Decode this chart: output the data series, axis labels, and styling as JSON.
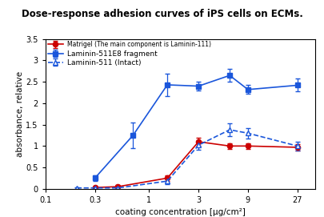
{
  "title": "Dose-response adhesion curves of iPS cells on ECMs.",
  "title_bg": "#FFFF00",
  "xlabel": "coating concentration [μg/cm²]",
  "ylabel": "absorbance, relative",
  "ylim": [
    0,
    3.5
  ],
  "yticks": [
    0.0,
    0.5,
    1.0,
    1.5,
    2.0,
    2.5,
    3.0,
    3.5
  ],
  "xtick_positions": [
    0.1,
    0.3,
    1,
    3,
    9,
    27
  ],
  "xticklabels": [
    "0.1",
    "0.3",
    "1",
    "3",
    "9",
    "27"
  ],
  "xlim_log": [
    0.1,
    40
  ],
  "matrigel": {
    "label_bold": "Matrigel",
    "label_small": " (The main component is Laminin-111)",
    "color": "#cc0000",
    "marker": "o",
    "linestyle": "-",
    "x": [
      0.3,
      0.5,
      1.5,
      3,
      6,
      9,
      27
    ],
    "y": [
      0.03,
      0.05,
      0.25,
      1.1,
      1.0,
      1.0,
      0.97
    ],
    "yerr": [
      0.03,
      0.03,
      0.07,
      0.1,
      0.07,
      0.07,
      0.08
    ]
  },
  "lam511e8": {
    "label": "Laminin-511E8 fragment",
    "color": "#1a56db",
    "marker": "s",
    "linestyle": "-",
    "x": [
      0.3,
      0.7,
      1.5,
      3,
      6,
      9,
      27
    ],
    "y": [
      0.25,
      1.25,
      2.43,
      2.4,
      2.65,
      2.32,
      2.42
    ],
    "yerr": [
      0.06,
      0.3,
      0.27,
      0.1,
      0.15,
      0.1,
      0.15
    ]
  },
  "lam511": {
    "label": "Laminin-511 (Intact)",
    "color": "#1a56db",
    "marker": "^",
    "linestyle": "--",
    "x": [
      0.2,
      0.3,
      0.5,
      1.5,
      3,
      6,
      9,
      27
    ],
    "y": [
      0.02,
      0.02,
      0.02,
      0.18,
      1.02,
      1.38,
      1.3,
      1.0
    ],
    "yerr": [
      0.02,
      0.02,
      0.02,
      0.07,
      0.1,
      0.15,
      0.12,
      0.1
    ]
  },
  "background_color": "#ffffff"
}
